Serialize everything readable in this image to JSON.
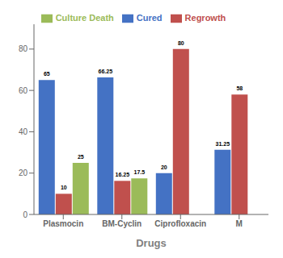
{
  "chart_data": {
    "type": "bar",
    "xlabel": "Drugs",
    "categories": [
      "Plasmocin",
      "BM-Cyclin",
      "Ciprofloxacin",
      "M"
    ],
    "series": [
      {
        "name": "Cured",
        "color": "#4472C4",
        "values": [
          65,
          66.25,
          20,
          31.25
        ]
      },
      {
        "name": "Regrowth",
        "color": "#C0504D",
        "values": [
          10,
          16.25,
          80,
          58
        ]
      },
      {
        "name": "Culture Death",
        "color": "#9BBB59",
        "values": [
          25,
          17.5,
          0,
          0
        ]
      }
    ],
    "ylim": [
      0,
      92
    ],
    "yticks": [
      0,
      20,
      40,
      60,
      80
    ],
    "data_labels": true,
    "legend": "upper center",
    "grid": false
  }
}
